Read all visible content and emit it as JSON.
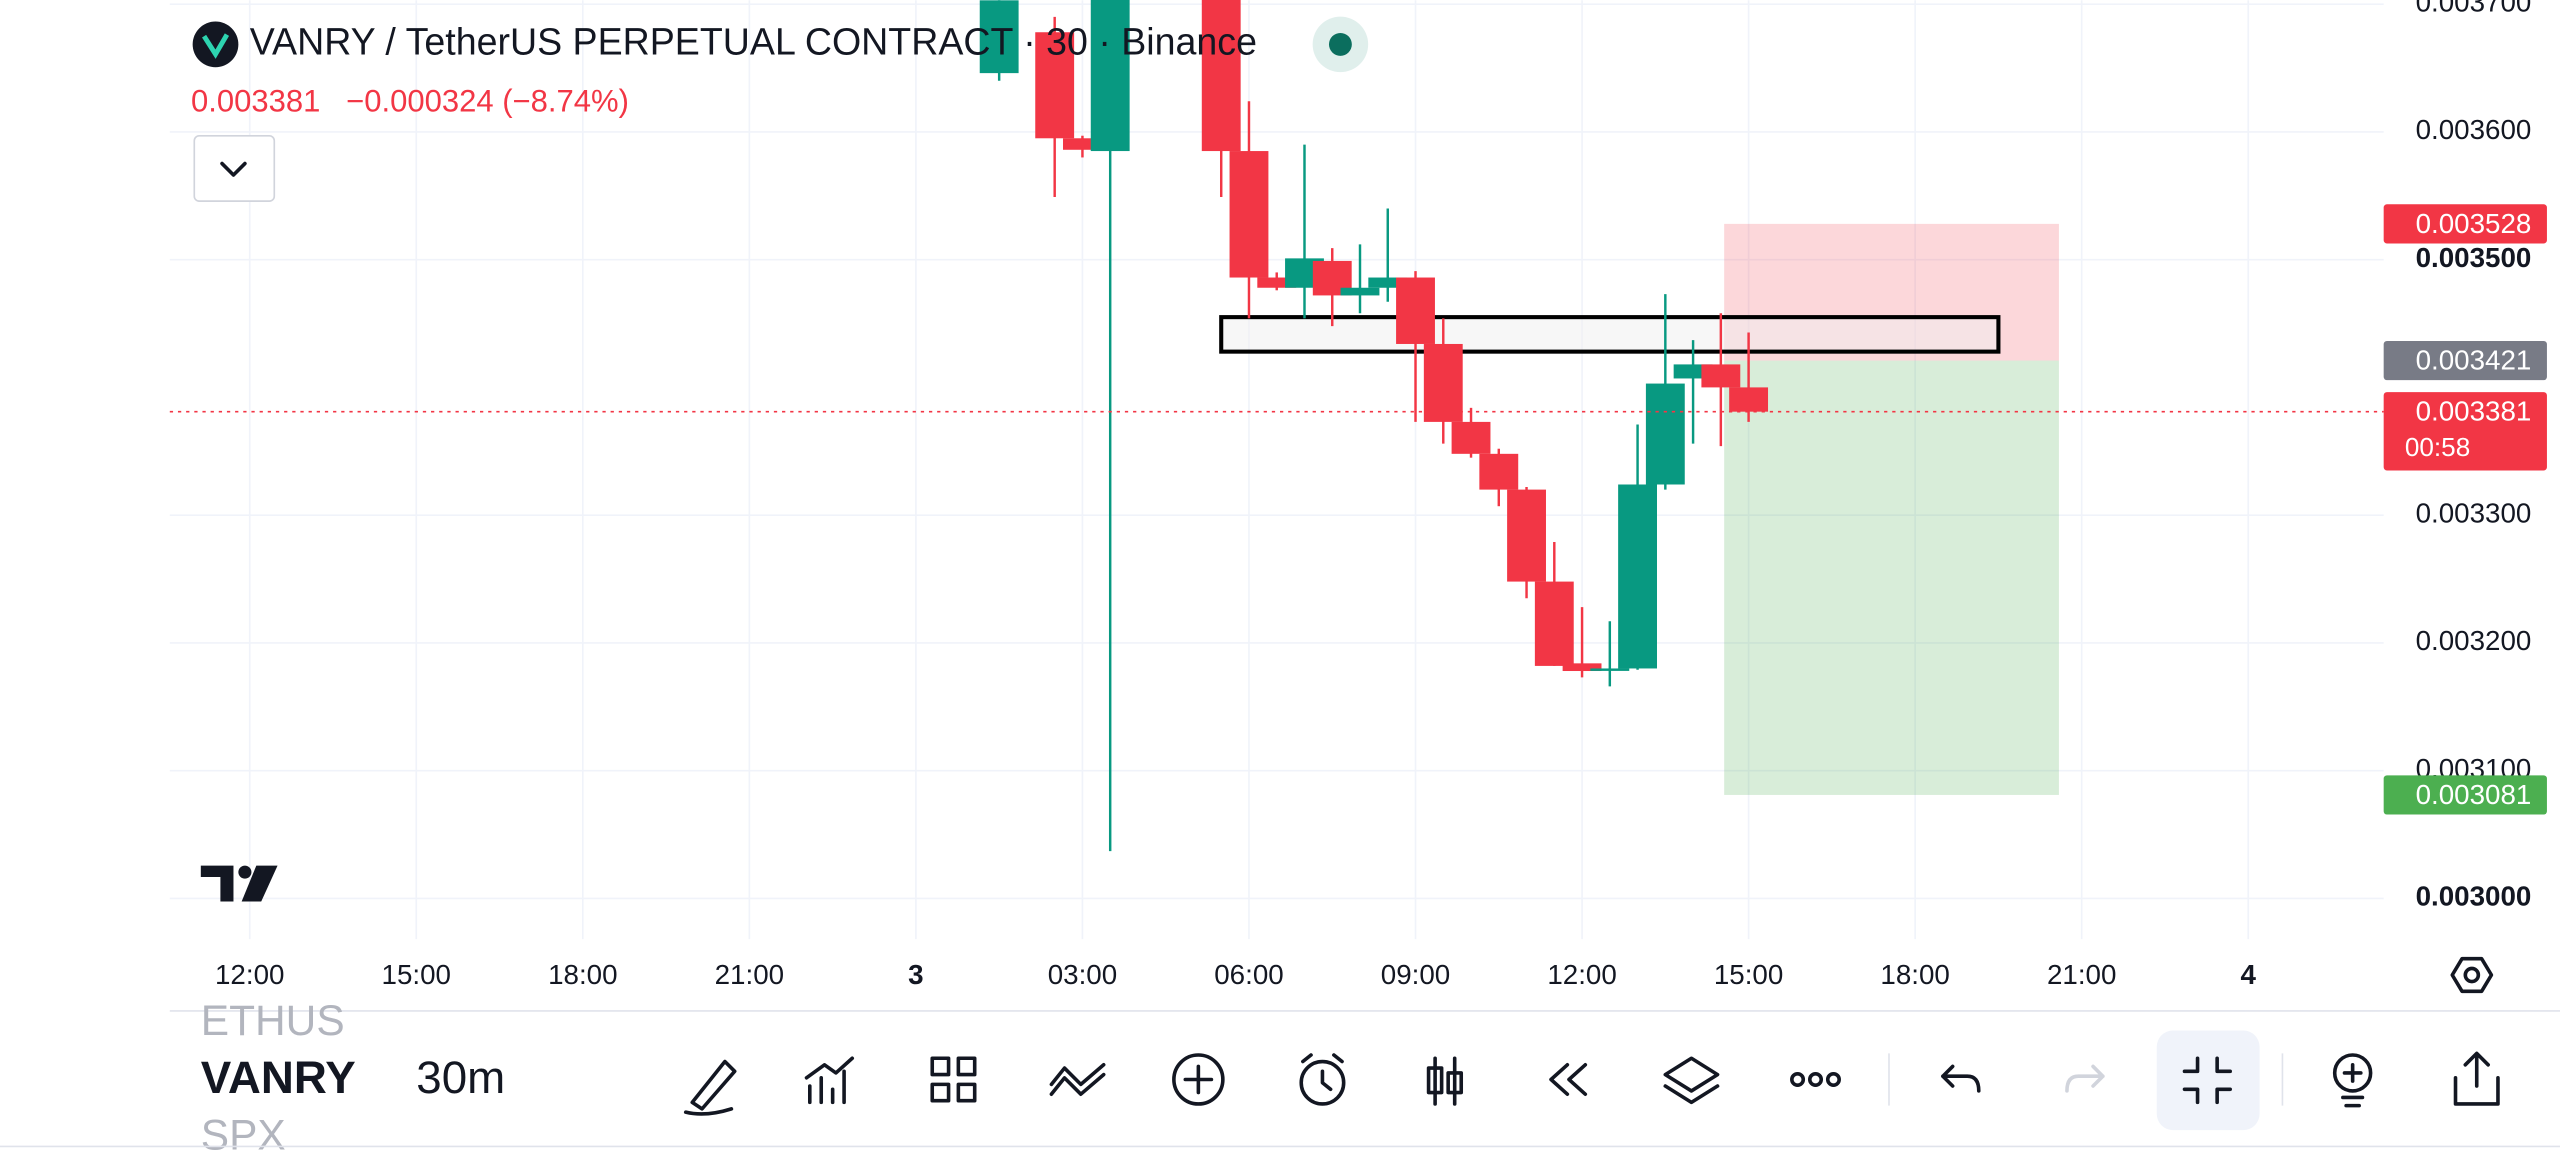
{
  "header": {
    "symbol": "VANRY / TetherUS PERPETUAL CONTRACT · 30 · Binance",
    "last": "0.003381",
    "change": "−0.000324 (−8.74%)"
  },
  "chart_data": {
    "type": "candlestick",
    "xlim": [
      -13.44,
      26.44
    ],
    "ylim": [
      0.002949,
      0.003703
    ],
    "grid": true,
    "xticks": [
      {
        "value": -12,
        "label": "12:00"
      },
      {
        "value": -9,
        "label": "15:00"
      },
      {
        "value": -6,
        "label": "18:00"
      },
      {
        "value": -3,
        "label": "21:00"
      },
      {
        "value": 0,
        "label": "3"
      },
      {
        "value": 3,
        "label": "03:00"
      },
      {
        "value": 6,
        "label": "06:00"
      },
      {
        "value": 9,
        "label": "09:00"
      },
      {
        "value": 12,
        "label": "12:00"
      },
      {
        "value": 15,
        "label": "15:00"
      },
      {
        "value": 18,
        "label": "18:00"
      },
      {
        "value": 21,
        "label": "21:00"
      },
      {
        "value": 24,
        "label": "4"
      }
    ],
    "yticks": [
      {
        "value": 0.0037,
        "label": "0.003700"
      },
      {
        "value": 0.0036,
        "label": "0.003600"
      },
      {
        "value": 0.0035,
        "label": "0.003500"
      },
      {
        "value": 0.0033,
        "label": "0.003300"
      },
      {
        "value": 0.0032,
        "label": "0.003200"
      },
      {
        "value": 0.0031,
        "label": "0.003100"
      },
      {
        "value": 0.003,
        "label": "0.003000"
      }
    ],
    "up_color": "#089981",
    "down_color": "#f23645",
    "candles": {
      "x": [
        1.5,
        2.5,
        3,
        3.5,
        5.5,
        6,
        6.5,
        7,
        7.5,
        8,
        8.5,
        9,
        9.5,
        10,
        10.5,
        11,
        11.5,
        12,
        12.5,
        13,
        13.5,
        14,
        14.5,
        15
      ],
      "open": [
        0.003646,
        0.003678,
        0.003595,
        0.003585,
        0.00372,
        0.003585,
        0.003486,
        0.003478,
        0.003499,
        0.003472,
        0.003478,
        0.003486,
        0.003434,
        0.003373,
        0.003348,
        0.00332,
        0.003248,
        0.003184,
        0.003179,
        0.00318,
        0.003324,
        0.003407,
        0.003418,
        0.0034
      ],
      "high": [
        0.003703,
        0.00369,
        0.003597,
        0.00372,
        0.00372,
        0.003624,
        0.00349,
        0.00359,
        0.003509,
        0.003512,
        0.00354,
        0.003491,
        0.003454,
        0.003384,
        0.003352,
        0.003322,
        0.003279,
        0.003228,
        0.003217,
        0.003371,
        0.003473,
        0.003437,
        0.003458,
        0.003443
      ],
      "low": [
        0.00364,
        0.003549,
        0.00358,
        0.003037,
        0.003549,
        0.003454,
        0.003476,
        0.003454,
        0.003448,
        0.003458,
        0.003467,
        0.003373,
        0.003356,
        0.003345,
        0.003307,
        0.003235,
        0.003182,
        0.003173,
        0.003166,
        0.003179,
        0.00332,
        0.003356,
        0.003354,
        0.003373
      ],
      "close": [
        0.003703,
        0.003595,
        0.003586,
        0.00372,
        0.003585,
        0.003486,
        0.003478,
        0.003501,
        0.003472,
        0.003478,
        0.003486,
        0.003434,
        0.003373,
        0.003348,
        0.00332,
        0.003248,
        0.003182,
        0.003178,
        0.00318,
        0.003324,
        0.003403,
        0.003418,
        0.0034,
        0.003381
      ]
    },
    "rectangle": {
      "x": [
        5.5,
        19.5
      ],
      "y": [
        0.003428,
        0.003455
      ]
    },
    "position": {
      "x": [
        14.56,
        20.59
      ],
      "stop": {
        "value": 0.003528,
        "label": "0.003528",
        "color": "#f23645"
      },
      "entry": {
        "value": 0.003421,
        "label": "0.003421",
        "color": "#787b86"
      },
      "target": {
        "value": 0.003081,
        "label": "0.003081",
        "color": "#4caf50"
      }
    },
    "last_price": {
      "value": 0.003381,
      "label": "0.003381",
      "countdown": "00:58",
      "color": "#f23645"
    }
  },
  "toolbar": {
    "symbols": [
      "ETHUS",
      "VANRY",
      "SPX"
    ],
    "interval": "30m"
  }
}
